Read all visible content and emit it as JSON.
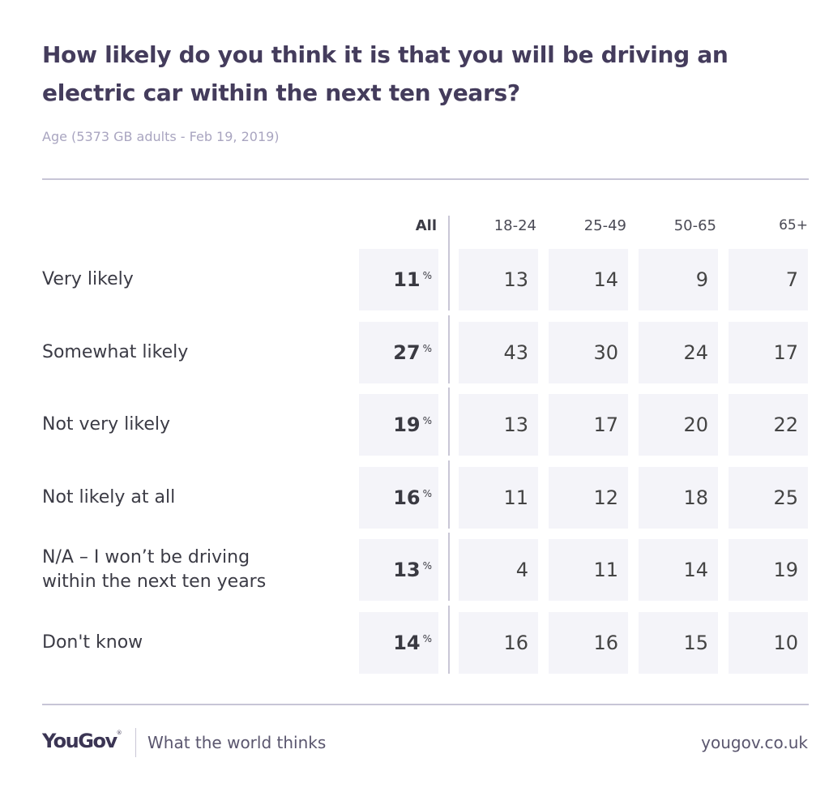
{
  "chart_data": {
    "type": "table",
    "title": "How likely do you think it is that you will be driving an electric car within the next ten years?",
    "subtitle": "Age (5373 GB adults - Feb 19, 2019)",
    "columns": [
      "All",
      "18-24",
      "25-49",
      "50-65",
      "65+"
    ],
    "unit_suffix": "%",
    "rows": [
      {
        "label": "Very likely",
        "values": [
          11,
          13,
          14,
          9,
          7
        ]
      },
      {
        "label": "Somewhat likely",
        "values": [
          27,
          43,
          30,
          24,
          17
        ]
      },
      {
        "label": "Not very likely",
        "values": [
          19,
          13,
          17,
          20,
          22
        ]
      },
      {
        "label": "Not likely at all",
        "values": [
          16,
          11,
          12,
          18,
          25
        ]
      },
      {
        "label": "N/A – I won’t be driving within the next ten years",
        "label_lines": [
          "N/A – I won’t be driving",
          "within the next ten years"
        ],
        "values": [
          13,
          4,
          11,
          14,
          19
        ]
      },
      {
        "label": "Don't know",
        "values": [
          14,
          16,
          16,
          15,
          10
        ]
      }
    ]
  },
  "footer": {
    "logo": "YouGov",
    "logo_mark": "®",
    "tagline": "What the world thinks",
    "url": "yougov.co.uk"
  },
  "colors": {
    "title": "#443c5c",
    "subtitle": "#a9a5c0",
    "cell_bg": "#f4f4f9",
    "rule": "#c7c5d6"
  }
}
